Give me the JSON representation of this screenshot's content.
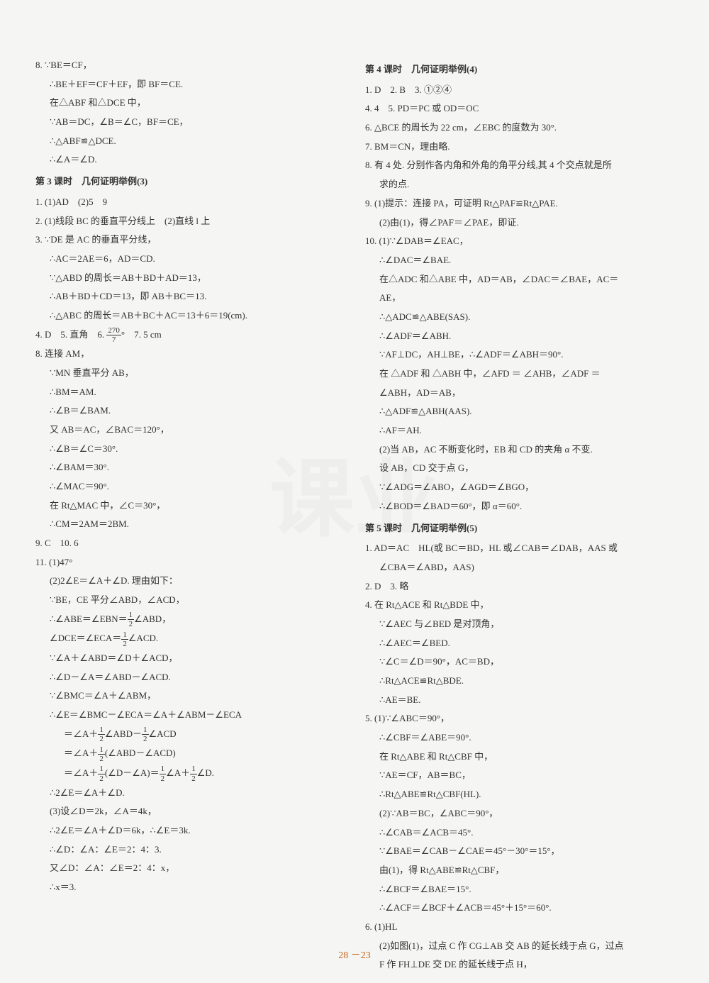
{
  "page_number": "28 －23",
  "watermark_text": "课业",
  "left_column": [
    {
      "text": "8. ∵BE＝CF，",
      "indent": 0
    },
    {
      "text": "∴BE＋EF＝CF＋EF，即 BF＝CE.",
      "indent": 1
    },
    {
      "text": "在△ABF 和△DCE 中，",
      "indent": 1
    },
    {
      "text": "∵AB＝DC，∠B＝∠C，BF＝CE，",
      "indent": 1
    },
    {
      "text": "∴△ABF≌△DCE.",
      "indent": 1
    },
    {
      "text": "∴∠A＝∠D.",
      "indent": 1
    },
    {
      "text": "第 3 课时　几何证明举例(3)",
      "indent": 0,
      "header": true
    },
    {
      "text": "1. (1)AD　(2)5　9",
      "indent": 0
    },
    {
      "text": "2. (1)线段 BC 的垂直平分线上　(2)直线 l 上",
      "indent": 0
    },
    {
      "text": "3. ∵DE 是 AC 的垂直平分线，",
      "indent": 0
    },
    {
      "text": "∴AC＝2AE＝6，AD＝CD.",
      "indent": 1
    },
    {
      "text": "∵△ABD 的周长＝AB＋BD＋AD＝13，",
      "indent": 1
    },
    {
      "text": "∴AB＋BD＋CD＝13，即 AB＋BC＝13.",
      "indent": 1
    },
    {
      "text": "∴△ABC 的周长＝AB＋BC＋AC＝13＋6＝19(cm).",
      "indent": 1
    },
    {
      "text": "4. D　5. 直角　6. (270/7)°　7. 5 cm",
      "indent": 0,
      "frac": "270/7"
    },
    {
      "text": "8. 连接 AM，",
      "indent": 0
    },
    {
      "text": "∵MN 垂直平分 AB，",
      "indent": 1
    },
    {
      "text": "∴BM＝AM.",
      "indent": 1
    },
    {
      "text": "∴∠B＝∠BAM.",
      "indent": 1
    },
    {
      "text": "又 AB＝AC，∠BAC＝120°，",
      "indent": 1
    },
    {
      "text": "∴∠B＝∠C＝30°.",
      "indent": 1
    },
    {
      "text": "∴∠BAM＝30°.",
      "indent": 1
    },
    {
      "text": "∴∠MAC＝90°.",
      "indent": 1
    },
    {
      "text": "在 Rt△MAC 中，∠C＝30°，",
      "indent": 1
    },
    {
      "text": "∴CM＝2AM＝2BM.",
      "indent": 1
    },
    {
      "text": "9. C　10. 6",
      "indent": 0
    },
    {
      "text": "11. (1)47°",
      "indent": 0
    },
    {
      "text": "(2)2∠E＝∠A＋∠D. 理由如下：",
      "indent": 1
    },
    {
      "text": "∵BE，CE 平分∠ABD，∠ACD，",
      "indent": 1
    },
    {
      "text": "∴∠ABE＝∠EBN＝(1/2)∠ABD，",
      "indent": 1,
      "frac": "1/2"
    },
    {
      "text": "∠DCE＝∠ECA＝(1/2)∠ACD.",
      "indent": 1,
      "frac": "1/2"
    },
    {
      "text": "∵∠A＋∠ABD＝∠D＋∠ACD，",
      "indent": 1
    },
    {
      "text": "∴∠D－∠A＝∠ABD－∠ACD.",
      "indent": 1
    },
    {
      "text": "∵∠BMC＝∠A＋∠ABM，",
      "indent": 1
    },
    {
      "text": "∴∠E＝∠BMC－∠ECA＝∠A＋∠ABM－∠ECA",
      "indent": 1
    },
    {
      "text": "＝∠A＋(1/2)∠ABD－(1/2)∠ACD",
      "indent": 2,
      "frac": "1/2"
    },
    {
      "text": "＝∠A＋(1/2)(∠ABD－∠ACD)",
      "indent": 2,
      "frac": "1/2"
    },
    {
      "text": "＝∠A＋(1/2)(∠D－∠A)＝(1/2)∠A＋(1/2)∠D.",
      "indent": 2,
      "frac": "1/2"
    },
    {
      "text": "∴2∠E＝∠A＋∠D.",
      "indent": 1
    },
    {
      "text": "(3)设∠D＝2k，∠A＝4k，",
      "indent": 1
    },
    {
      "text": "∴2∠E＝∠A＋∠D＝6k，∴∠E＝3k.",
      "indent": 1
    },
    {
      "text": "∴∠D：∠A：∠E＝2：4：3.",
      "indent": 1
    },
    {
      "text": "又∠D：∠A：∠E＝2：4：x，",
      "indent": 1
    },
    {
      "text": "∴x＝3.",
      "indent": 1
    }
  ],
  "right_column": [
    {
      "text": "第 4 课时　几何证明举例(4)",
      "indent": 0,
      "header": true
    },
    {
      "text": "1. D　2. B　3. ①②④",
      "indent": 0
    },
    {
      "text": "4. 4　5. PD＝PC 或 OD＝OC",
      "indent": 0
    },
    {
      "text": "6. △BCE 的周长为 22 cm，∠EBC 的度数为 30°.",
      "indent": 0
    },
    {
      "text": "7. BM＝CN，理由略.",
      "indent": 0
    },
    {
      "text": "8. 有 4 处. 分别作各内角和外角的角平分线,其 4 个交点就是所",
      "indent": 0
    },
    {
      "text": "求的点.",
      "indent": 1
    },
    {
      "text": "9. (1)提示：连接 PA，可证明 Rt△PAF≌Rt△PAE.",
      "indent": 0
    },
    {
      "text": "(2)由(1)，得∠PAF＝∠PAE，即证.",
      "indent": 1
    },
    {
      "text": "10. (1)∵∠DAB＝∠EAC，",
      "indent": 0
    },
    {
      "text": "∴∠DAC＝∠BAE.",
      "indent": 1
    },
    {
      "text": "在△ADC 和△ABE 中，AD＝AB，∠DAC＝∠BAE，AC＝",
      "indent": 1
    },
    {
      "text": "AE，",
      "indent": 1
    },
    {
      "text": "∴△ADC≌△ABE(SAS).",
      "indent": 1
    },
    {
      "text": "∴∠ADF＝∠ABH.",
      "indent": 1
    },
    {
      "text": "∵AF⊥DC，AH⊥BE，∴∠ADF＝∠ABH＝90°.",
      "indent": 1
    },
    {
      "text": "在 △ADF 和 △ABH 中，∠AFD ＝ ∠AHB，∠ADF ＝",
      "indent": 1
    },
    {
      "text": "∠ABH，AD＝AB，",
      "indent": 1
    },
    {
      "text": "∴△ADF≌△ABH(AAS).",
      "indent": 1
    },
    {
      "text": "∴AF＝AH.",
      "indent": 1
    },
    {
      "text": "(2)当 AB，AC 不断变化时，EB 和 CD 的夹角 α 不变.",
      "indent": 1
    },
    {
      "text": "设 AB，CD 交于点 G，",
      "indent": 1
    },
    {
      "text": "∵∠ADG＝∠ABO，∠AGD＝∠BGO，",
      "indent": 1
    },
    {
      "text": "∴∠BOD＝∠BAD＝60°，即 α＝60°.",
      "indent": 1
    },
    {
      "text": "第 5 课时　几何证明举例(5)",
      "indent": 0,
      "header": true
    },
    {
      "text": "1. AD＝AC　HL(或 BC＝BD，HL 或∠CAB＝∠DAB，AAS 或",
      "indent": 0
    },
    {
      "text": "∠CBA＝∠ABD，AAS)",
      "indent": 1
    },
    {
      "text": "2. D　3. 略",
      "indent": 0
    },
    {
      "text": "4. 在 Rt△ACE 和 Rt△BDE 中，",
      "indent": 0
    },
    {
      "text": "∵∠AEC 与∠BED 是对顶角，",
      "indent": 1
    },
    {
      "text": "∴∠AEC＝∠BED.",
      "indent": 1
    },
    {
      "text": "∵∠C＝∠D＝90°，AC＝BD，",
      "indent": 1
    },
    {
      "text": "∴Rt△ACE≌Rt△BDE.",
      "indent": 1
    },
    {
      "text": "∴AE＝BE.",
      "indent": 1
    },
    {
      "text": "5. (1)∵∠ABC＝90°，",
      "indent": 0
    },
    {
      "text": "∴∠CBF＝∠ABE＝90°.",
      "indent": 1
    },
    {
      "text": "在 Rt△ABE 和 Rt△CBF 中，",
      "indent": 1
    },
    {
      "text": "∵AE＝CF，AB＝BC，",
      "indent": 1
    },
    {
      "text": "∴Rt△ABE≌Rt△CBF(HL).",
      "indent": 1
    },
    {
      "text": "(2)∵AB＝BC，∠ABC＝90°，",
      "indent": 1
    },
    {
      "text": "∴∠CAB＝∠ACB＝45°.",
      "indent": 1
    },
    {
      "text": "∵∠BAE＝∠CAB－∠CAE＝45°－30°＝15°，",
      "indent": 1
    },
    {
      "text": "由(1)，得 Rt△ABE≌Rt△CBF，",
      "indent": 1
    },
    {
      "text": "∴∠BCF＝∠BAE＝15°.",
      "indent": 1
    },
    {
      "text": "∴∠ACF＝∠BCF＋∠ACB＝45°＋15°＝60°.",
      "indent": 1
    },
    {
      "text": "6. (1)HL",
      "indent": 0
    },
    {
      "text": "(2)如图(1)，过点 C 作 CG⊥AB 交 AB 的延长线于点 G，过点",
      "indent": 1
    },
    {
      "text": "F 作 FH⊥DE 交 DE 的延长线于点 H，",
      "indent": 1
    }
  ]
}
